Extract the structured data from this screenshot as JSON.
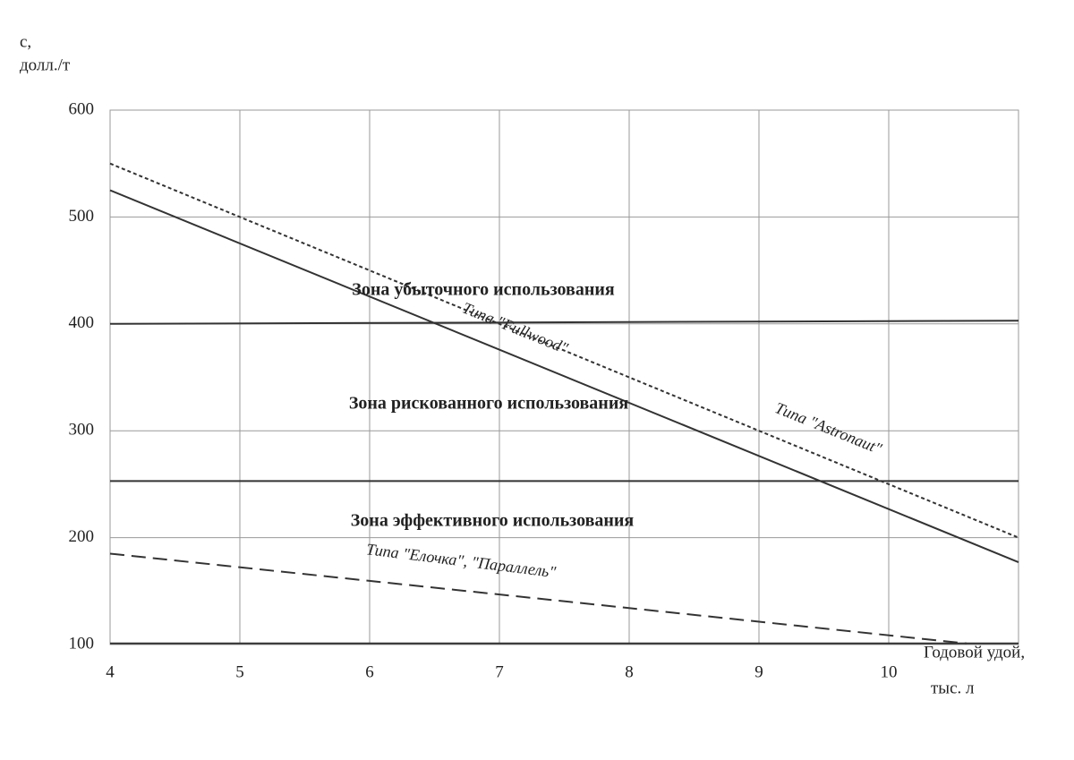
{
  "chart_data": {
    "type": "line",
    "y_label": [
      "с,",
      "долл./т"
    ],
    "x_label": [
      "Годовой удой,",
      "тыс. л"
    ],
    "xlim": [
      4,
      11
    ],
    "xticks": [
      4,
      5,
      6,
      7,
      8,
      9,
      10
    ],
    "ylim": [
      100,
      600
    ],
    "yticks": [
      100,
      200,
      300,
      400,
      500,
      600
    ],
    "grid": true,
    "series": [
      {
        "name": "Типа \"Fullwood\"",
        "color": "#333333",
        "style": "solid",
        "x": [
          4,
          11
        ],
        "values": [
          525,
          177
        ]
      },
      {
        "name": "Типа \"Astronaut\"",
        "color": "#333333",
        "style": "dotted",
        "x": [
          4,
          11
        ],
        "values": [
          550,
          200
        ]
      },
      {
        "name": "Типа \"Елочка\", \"Параллель\"",
        "color": "#333333",
        "style": "dashed",
        "x": [
          4,
          10.6
        ],
        "values": [
          185,
          101
        ]
      },
      {
        "color": "#333333",
        "style": "solid",
        "x": [
          4,
          11
        ],
        "values": [
          400,
          403
        ]
      },
      {
        "color": "#333333",
        "style": "solid",
        "x": [
          4,
          11
        ],
        "values": [
          253,
          253
        ]
      },
      {
        "color": "#333333",
        "style": "solid",
        "x": [
          4,
          11
        ],
        "values": [
          101,
          101
        ]
      }
    ],
    "annotations": [
      "Зона убыточного использования",
      "Зона рискованного использования",
      "Зона эффективного использования"
    ]
  }
}
